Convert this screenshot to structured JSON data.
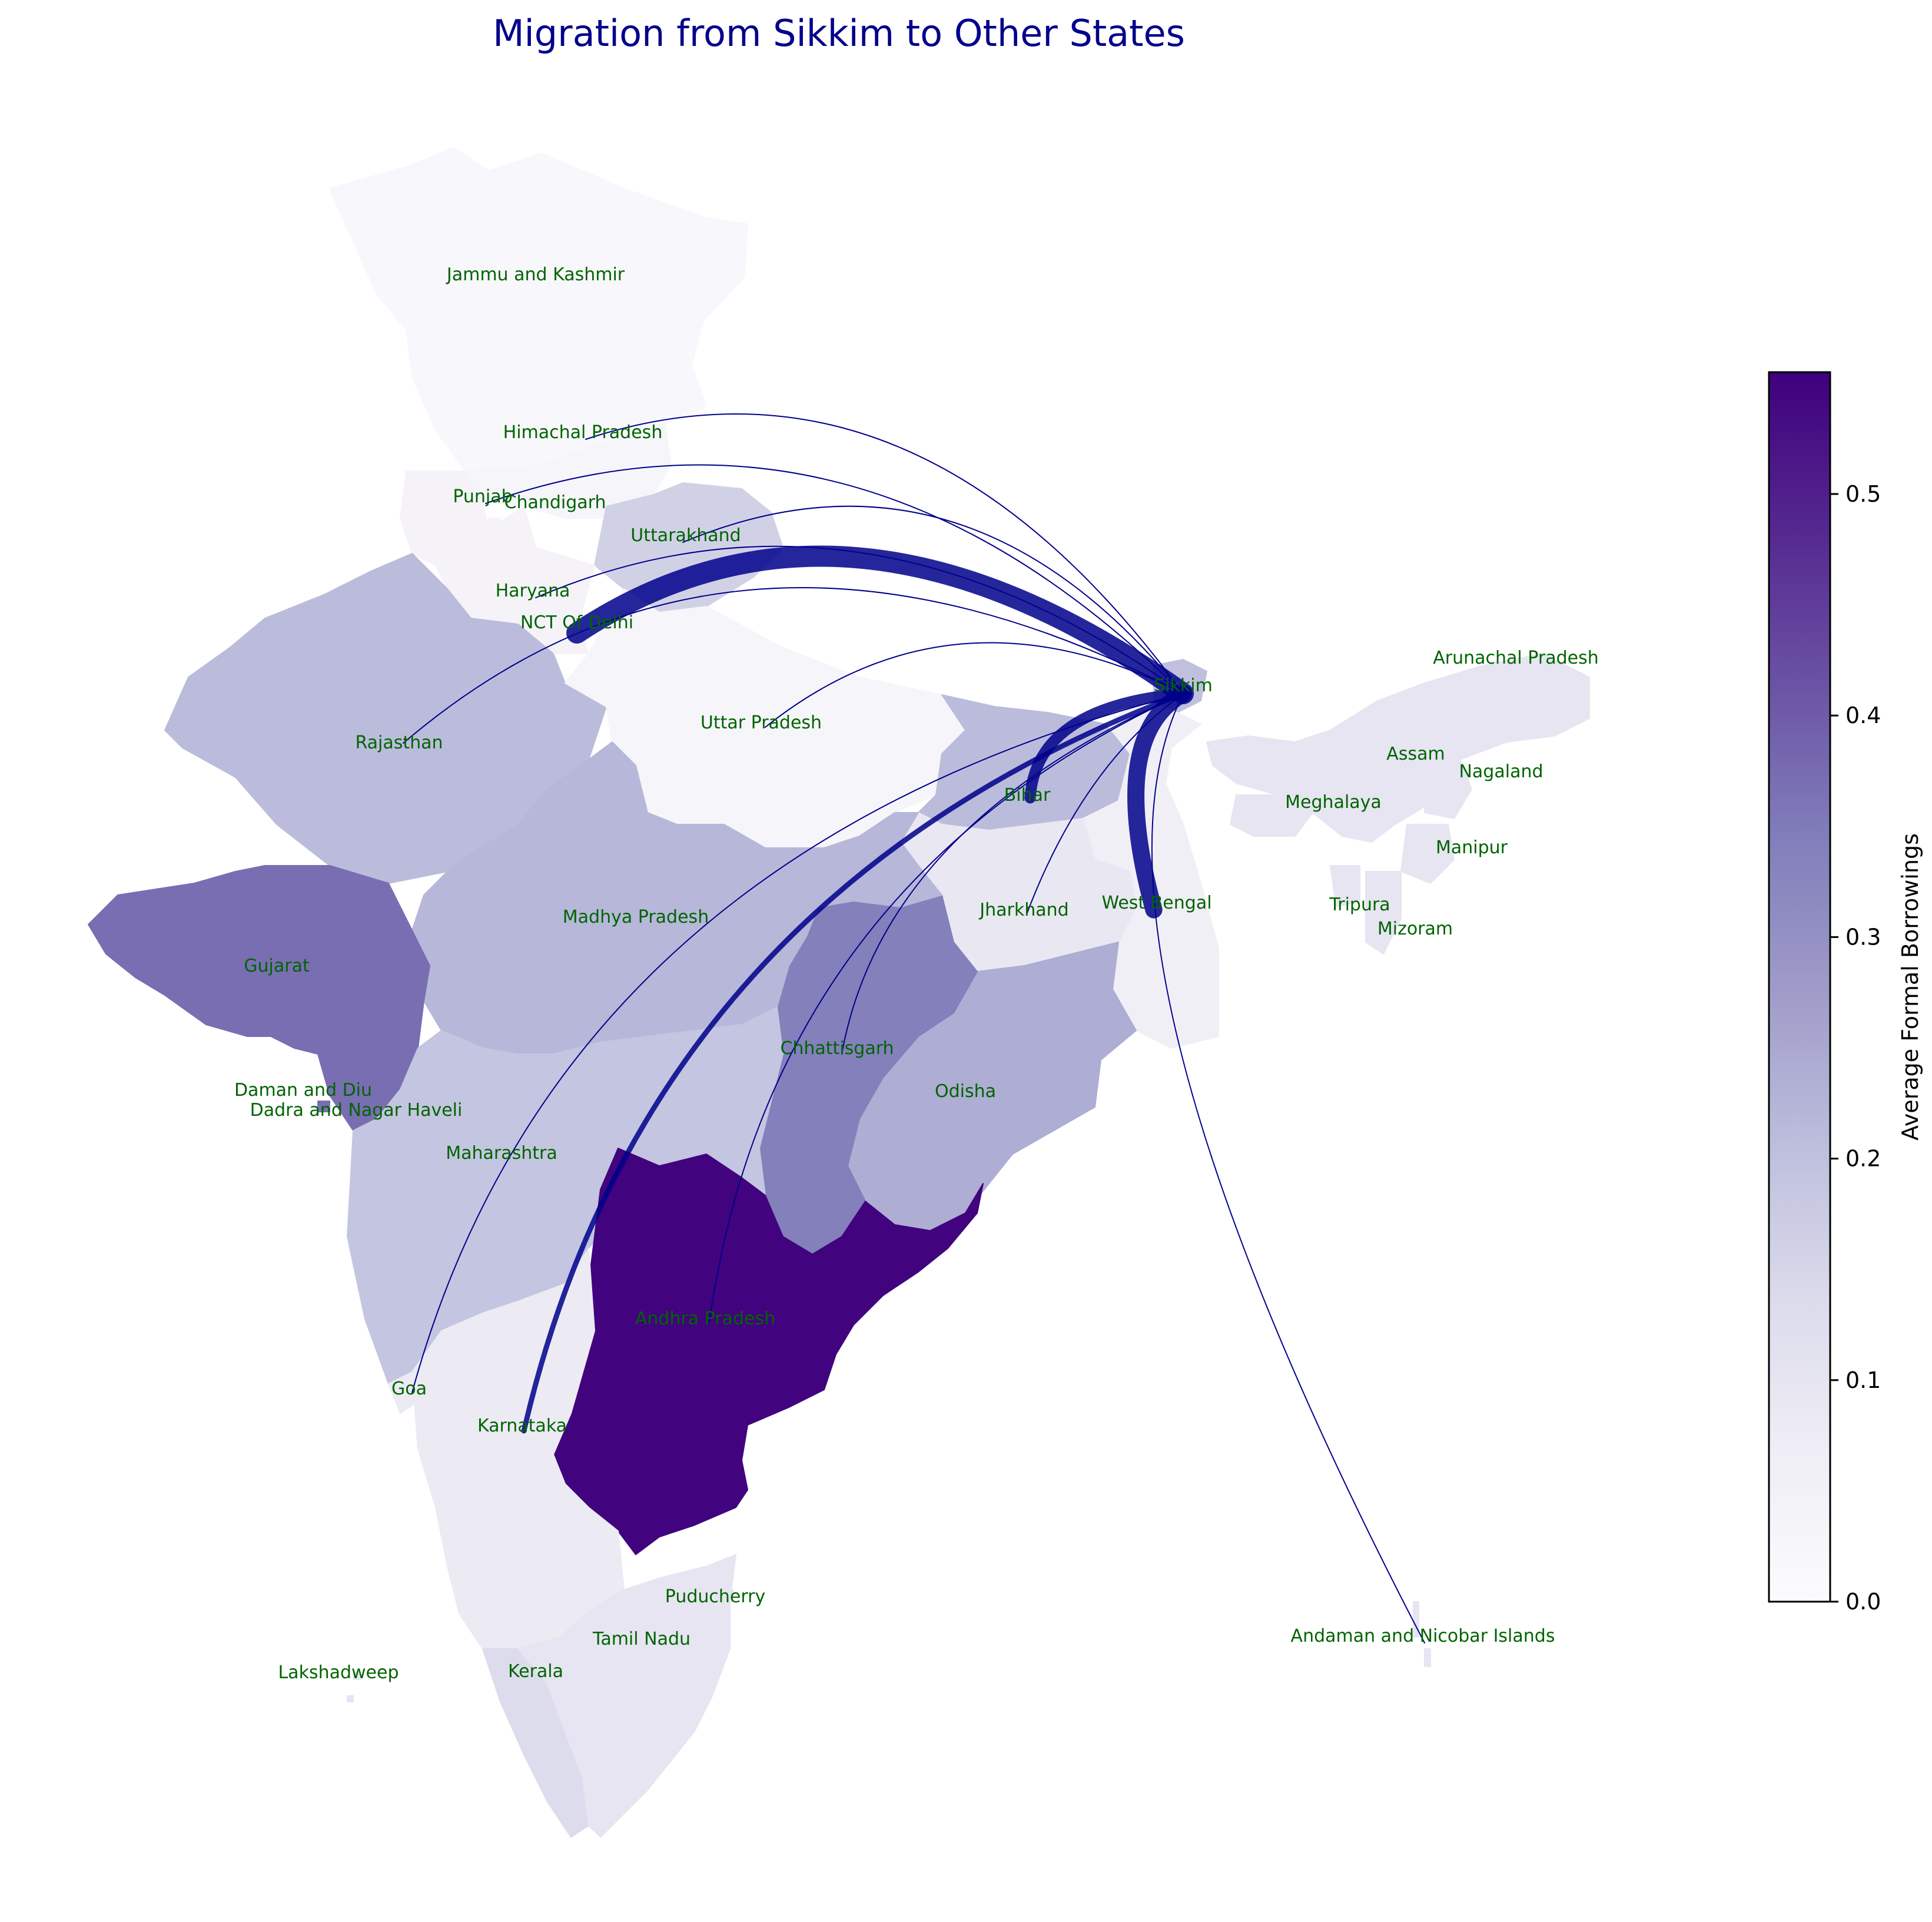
{
  "map": {
    "title": "Migration from Sikkim to Other States",
    "origin": "Sikkim",
    "colorbar": {
      "label": "Average Formal Borrowings",
      "ticks": [
        "0.0",
        "0.1",
        "0.2",
        "0.3",
        "0.4",
        "0.5"
      ],
      "range": [
        0,
        0.555
      ],
      "colormap": [
        "#fcfbfd",
        "#efedf5",
        "#dadaeb",
        "#bcbddc",
        "#9e9ac8",
        "#807dba",
        "#6a51a3",
        "#54278f",
        "#3f007d"
      ]
    },
    "flow_color": "#00008b",
    "label_color": "#006400",
    "states": [
      {
        "name": "Jammu and Kashmir",
        "value": 0.02
      },
      {
        "name": "Himachal Pradesh",
        "value": 0.03
      },
      {
        "name": "Punjab",
        "value": 0.04
      },
      {
        "name": "Chandigarh",
        "value": 0.04
      },
      {
        "name": "Uttarakhand",
        "value": 0.16
      },
      {
        "name": "Haryana",
        "value": 0.04
      },
      {
        "name": "NCT Of Delhi",
        "value": 0.04
      },
      {
        "name": "Rajasthan",
        "value": 0.21
      },
      {
        "name": "Uttar Pradesh",
        "value": 0.03
      },
      {
        "name": "Bihar",
        "value": 0.21
      },
      {
        "name": "Sikkim",
        "value": 0.2
      },
      {
        "name": "Arunachal Pradesh",
        "value": 0.1
      },
      {
        "name": "Nagaland",
        "value": 0.1
      },
      {
        "name": "Manipur",
        "value": 0.1
      },
      {
        "name": "Mizoram",
        "value": 0.1
      },
      {
        "name": "Tripura",
        "value": 0.1
      },
      {
        "name": "Meghalaya",
        "value": 0.1
      },
      {
        "name": "Assam",
        "value": 0.1
      },
      {
        "name": "West Bengal",
        "value": 0.06
      },
      {
        "name": "Jharkhand",
        "value": 0.09
      },
      {
        "name": "Odisha",
        "value": 0.24
      },
      {
        "name": "Chhattisgarh",
        "value": 0.34
      },
      {
        "name": "Madhya Pradesh",
        "value": 0.22
      },
      {
        "name": "Gujarat",
        "value": 0.37
      },
      {
        "name": "Daman and Diu",
        "value": 0.37
      },
      {
        "name": "Dadra and Nagar Haveli",
        "value": 0.37
      },
      {
        "name": "Maharashtra",
        "value": 0.19
      },
      {
        "name": "Andhra Pradesh",
        "value": 0.55
      },
      {
        "name": "Karnataka",
        "value": 0.08
      },
      {
        "name": "Goa",
        "value": 0.08
      },
      {
        "name": "Lakshadweep",
        "value": 0.1
      },
      {
        "name": "Kerala",
        "value": 0.13
      },
      {
        "name": "Tamil Nadu",
        "value": 0.1
      },
      {
        "name": "Puducherry",
        "value": 0.1
      },
      {
        "name": "Andaman and Nicobar Islands",
        "value": 0.1
      }
    ],
    "flows": [
      {
        "to": "NCT Of Delhi",
        "weight": 10
      },
      {
        "to": "West Bengal",
        "weight": 8
      },
      {
        "to": "Bihar",
        "weight": 5
      },
      {
        "to": "Karnataka",
        "weight": 2
      },
      {
        "to": "Himachal Pradesh",
        "weight": 1
      },
      {
        "to": "Punjab",
        "weight": 1
      },
      {
        "to": "Uttarakhand",
        "weight": 1
      },
      {
        "to": "Haryana",
        "weight": 1
      },
      {
        "to": "Rajasthan",
        "weight": 1
      },
      {
        "to": "Uttar Pradesh",
        "weight": 1
      },
      {
        "to": "Jharkhand",
        "weight": 1
      },
      {
        "to": "Chhattisgarh",
        "weight": 1
      },
      {
        "to": "Andhra Pradesh",
        "weight": 1
      },
      {
        "to": "Goa",
        "weight": 1
      },
      {
        "to": "Andaman and Nicobar Islands",
        "weight": 1
      }
    ]
  }
}
